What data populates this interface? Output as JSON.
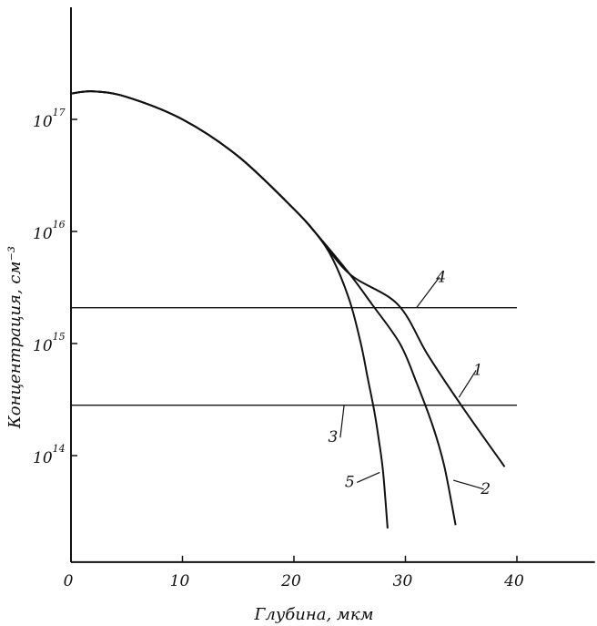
{
  "chart_data": {
    "type": "line",
    "title": "",
    "xlabel": "Глубина, мкм",
    "ylabel": "Концентрация, см⁻³",
    "y_scale": "log",
    "xlim": [
      0,
      47
    ],
    "ylim_log10": [
      13.05,
      18.0
    ],
    "grid": false,
    "x_ticks": [
      {
        "value": 0,
        "label": "0"
      },
      {
        "value": 10,
        "label": "10"
      },
      {
        "value": 20,
        "label": "20"
      },
      {
        "value": 30,
        "label": "30"
      },
      {
        "value": 40,
        "label": "40"
      }
    ],
    "y_ticks": [
      {
        "value": 14,
        "base": "10",
        "exponent": "14"
      },
      {
        "value": 15,
        "base": "10",
        "exponent": "15"
      },
      {
        "value": 16,
        "base": "10",
        "exponent": "16"
      },
      {
        "value": 17,
        "base": "10",
        "exponent": "17"
      }
    ],
    "series": [
      {
        "name": "1",
        "x": [
          0,
          2,
          5,
          10,
          15,
          20,
          22,
          25,
          29.3,
          32,
          35,
          38.9
        ],
        "y_log10": [
          17.23,
          17.25,
          17.2,
          17.0,
          16.67,
          16.2,
          15.98,
          15.62,
          15.35,
          14.9,
          14.45,
          13.9
        ]
      },
      {
        "name": "2",
        "x": [
          0,
          2,
          5,
          10,
          15,
          20,
          22,
          25,
          27,
          29.5,
          31,
          32.5,
          33.5,
          34.5
        ],
        "y_log10": [
          17.23,
          17.25,
          17.2,
          17.0,
          16.67,
          16.2,
          15.98,
          15.62,
          15.35,
          15.0,
          14.65,
          14.25,
          13.9,
          13.38
        ]
      },
      {
        "name": "5",
        "x": [
          0,
          2,
          5,
          10,
          15,
          20,
          22,
          23.5,
          25,
          26,
          26.6,
          27.2,
          27.6,
          28.0,
          28.4
        ],
        "y_log10": [
          17.23,
          17.25,
          17.2,
          17.0,
          16.67,
          16.2,
          15.98,
          15.75,
          15.38,
          15.0,
          14.7,
          14.4,
          14.15,
          13.85,
          13.35
        ]
      },
      {
        "name": "4",
        "x": [
          0,
          40
        ],
        "y_log10": [
          15.32,
          15.32
        ]
      },
      {
        "name": "3",
        "x": [
          0,
          40
        ],
        "y_log10": [
          14.45,
          14.45
        ]
      }
    ],
    "annotations": [
      {
        "text": "1",
        "x": 36.5,
        "y_log10": 14.72,
        "anchor_x": 34.8,
        "anchor_y_log10": 14.52
      },
      {
        "text": "2",
        "x": 37.2,
        "y_log10": 13.66,
        "anchor_x": 34.3,
        "anchor_y_log10": 13.78
      },
      {
        "text": "3",
        "x": 23.5,
        "y_log10": 14.12,
        "anchor_x": 24.5,
        "anchor_y_log10": 14.45
      },
      {
        "text": "4",
        "x": 33.2,
        "y_log10": 15.55,
        "anchor_x": 31.0,
        "anchor_y_log10": 15.32
      },
      {
        "text": "5",
        "x": 25.0,
        "y_log10": 13.72,
        "anchor_x": 27.7,
        "anchor_y_log10": 13.85
      }
    ]
  }
}
